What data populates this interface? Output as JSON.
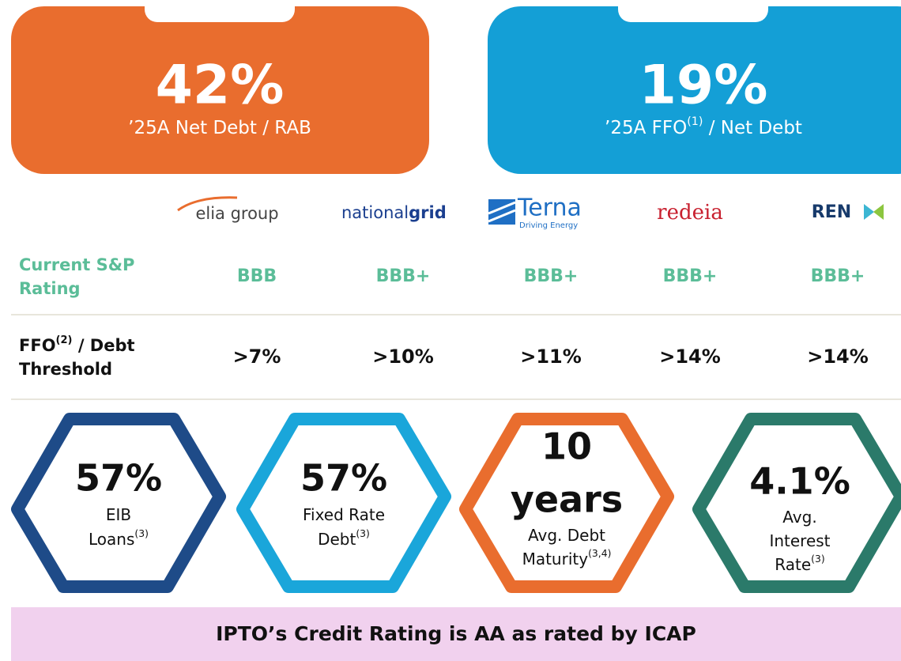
{
  "cards": [
    {
      "value": "42%",
      "label": [
        {
          "text": "’25A Net Debt / RAB"
        }
      ]
    },
    {
      "value": "19%",
      "label": [
        {
          "text": "’25A FFO"
        },
        {
          "text": "(1)",
          "sup": true
        },
        {
          "text": " / Net Debt"
        }
      ]
    }
  ],
  "logos": [
    {
      "parts": [
        "elia group"
      ]
    },
    {
      "parts": [
        "national",
        "grid"
      ]
    },
    {
      "parts": [
        "Terna",
        "Driving Energy"
      ]
    },
    {
      "parts": [
        "redeia"
      ]
    },
    {
      "parts": [
        "REN"
      ]
    }
  ],
  "table": {
    "rows": [
      {
        "label": [
          [
            {
              "text": "Current S&P"
            }
          ],
          [
            {
              "text": "Rating"
            }
          ]
        ],
        "values": [
          "BBB",
          "BBB+",
          "BBB+",
          "BBB+",
          "BBB+"
        ]
      },
      {
        "label": [
          [
            {
              "text": "FFO"
            },
            {
              "text": "(2)",
              "sup": true
            },
            {
              "text": " / Debt"
            }
          ],
          [
            {
              "text": "Threshold"
            }
          ]
        ],
        "values": [
          ">7%",
          ">10%",
          ">11%",
          ">14%",
          ">14%"
        ]
      }
    ]
  },
  "metrics": [
    {
      "value": [
        "57%"
      ],
      "label": [
        [
          {
            "text": "EIB"
          }
        ],
        [
          {
            "text": "Loans"
          },
          {
            "text": "(3)",
            "sup": true
          }
        ]
      ]
    },
    {
      "value": [
        "57%"
      ],
      "label": [
        [
          {
            "text": "Fixed Rate"
          }
        ],
        [
          {
            "text": "Debt"
          },
          {
            "text": "(3)",
            "sup": true
          }
        ]
      ]
    },
    {
      "value": [
        "10",
        "years"
      ],
      "label": [
        [
          {
            "text": "Avg. Debt"
          }
        ],
        [
          {
            "text": "Maturity"
          },
          {
            "text": "(3,4)",
            "sup": true
          }
        ]
      ]
    },
    {
      "value": [
        "4.1%"
      ],
      "label": [
        [
          {
            "text": "Avg."
          }
        ],
        [
          {
            "text": "Interest"
          }
        ],
        [
          {
            "text": "Rate"
          },
          {
            "text": "(3)",
            "sup": true
          }
        ]
      ]
    }
  ],
  "banner": "IPTO’s Credit Rating is AA as rated by ICAP"
}
